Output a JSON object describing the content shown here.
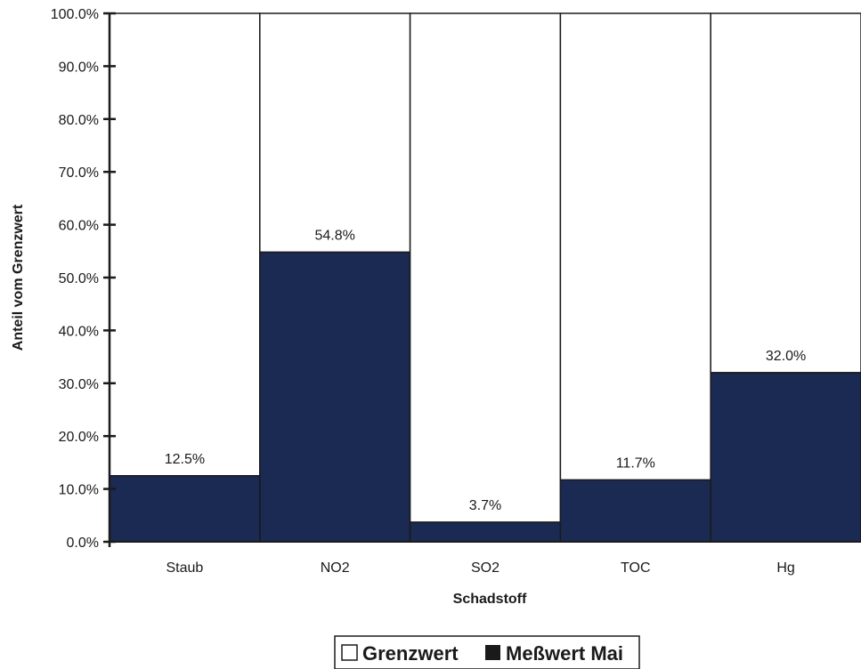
{
  "chart_data": {
    "type": "bar",
    "stacked": true,
    "categories": [
      "Staub",
      "NO2",
      "SO2",
      "TOC",
      "Hg"
    ],
    "series": [
      {
        "name": "Grenzwert",
        "values": [
          87.5,
          45.2,
          96.3,
          88.3,
          68.0
        ],
        "color": "#ffffff"
      },
      {
        "name": "Meßwert Mai",
        "values": [
          12.5,
          54.8,
          3.7,
          11.7,
          32.0
        ],
        "color": "#1b2a52"
      }
    ],
    "data_labels": [
      "12.5%",
      "54.8%",
      "3.7%",
      "11.7%",
      "32.0%"
    ],
    "xlabel": "Schadstoff",
    "ylabel": "Anteil vom Grenzwert",
    "ylim": [
      0,
      100
    ],
    "yticks": [
      "0.0%",
      "10.0%",
      "20.0%",
      "30.0%",
      "40.0%",
      "50.0%",
      "60.0%",
      "70.0%",
      "80.0%",
      "90.0%",
      "100.0%"
    ],
    "grid": false,
    "legend_position": "bottom"
  }
}
